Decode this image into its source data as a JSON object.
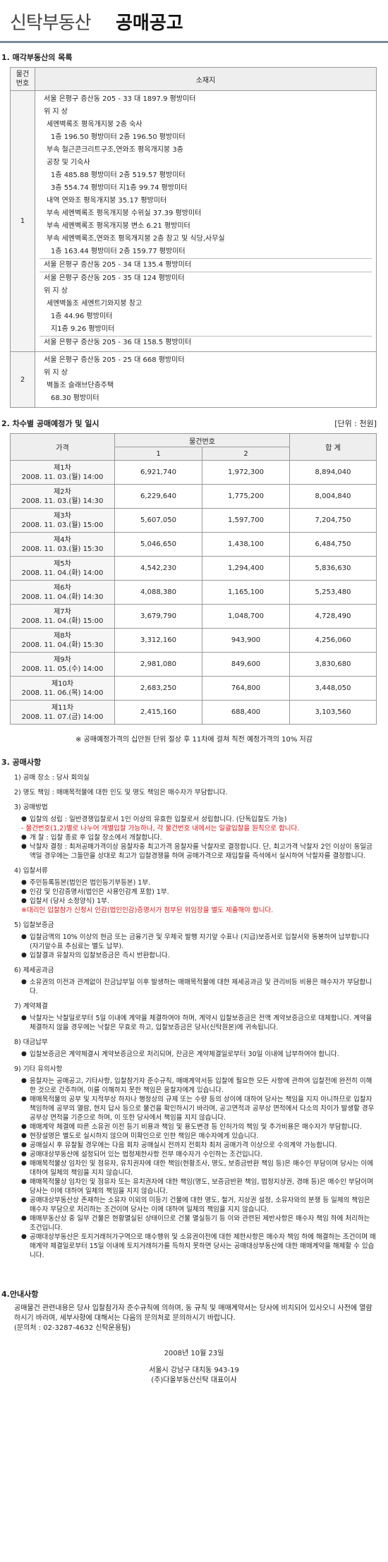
{
  "header": {
    "logo": "신탁부동산",
    "title": "공매공고"
  },
  "s1": {
    "title": "1. 매각부동산의 목록",
    "col1": "물건\n번호",
    "col2": "소재지",
    "item1_no": "1",
    "item1_lines": [
      "서울 은평구 증산동 205 - 33 대 1897.9 평방미터",
      "위 지 상",
      "세멘벽록조 평옥개지붕 2층 숙사",
      "1층 196.50 평방미터 2층 196.50 평방미터",
      "부속 철근콘크리트구조,연와조 평옥개지붕 3층",
      "공장 및 기숙사",
      "1층 485.88 평방미터 2층 519.57 평방미터",
      "3층 554.74 평방미터 지1층 99.74 평방미터",
      "내역 연와조 평옥개지붕 35.17 평방미터",
      "부속 세멘벽록조 평옥개지붕 수위실 37.39 평방미터",
      "부속 세멘벽록조 평옥개지붕 변소 6.21 평방미터",
      "부속 세멘벽록조,연와조 평옥개지붕 2층 창고 및 식당,사무실",
      "1층 163.44 평방미터 2층 159.77 평방미터",
      "서울 은평구 증산동 205 - 34 대 135.4 평방미터",
      "서울 은평구 증산동 205 - 35 대 124 평방미터",
      "위 지 상",
      "세멘벽돌조 세멘트기와지붕 창고",
      "1층 44.96 평방미터",
      "지1층 9.26 평방미터",
      "서울 은평구 증산동 205 - 36 대 158.5 평방미터"
    ],
    "item2_no": "2",
    "item2_lines": [
      "서울 은평구 증산동 205 - 25 대 668 평방미터",
      "위 지 상",
      "벽돌조 슬래브단층주택",
      "68.30 평방미터"
    ]
  },
  "s2": {
    "title": "2. 차수별 공매예정가 및 일시",
    "unit": "[단위 : 천원]",
    "head_price": "가격",
    "head_item": "물건번호",
    "head_1": "1",
    "head_2": "2",
    "head_total": "합 계",
    "rows": [
      {
        "round": "제1차",
        "date": "2008. 11. 03.(월) 14:00",
        "v1": "6,921,740",
        "v2": "1,972,300",
        "total": "8,894,040"
      },
      {
        "round": "제2차",
        "date": "2008. 11. 03.(월) 14:30",
        "v1": "6,229,640",
        "v2": "1,775,200",
        "total": "8,004,840"
      },
      {
        "round": "제3차",
        "date": "2008. 11. 03.(월) 15:00",
        "v1": "5,607,050",
        "v2": "1,597,700",
        "total": "7,204,750"
      },
      {
        "round": "제4차",
        "date": "2008. 11. 03.(월) 15:30",
        "v1": "5,046,650",
        "v2": "1,438,100",
        "total": "6,484,750"
      },
      {
        "round": "제5차",
        "date": "2008. 11. 04.(화) 14:00",
        "v1": "4,542,230",
        "v2": "1,294,400",
        "total": "5,836,630"
      },
      {
        "round": "제6차",
        "date": "2008. 11. 04.(화) 14:30",
        "v1": "4,088,380",
        "v2": "1,165,100",
        "total": "5,253,480"
      },
      {
        "round": "제7차",
        "date": "2008. 11. 04.(화) 15:00",
        "v1": "3,679,790",
        "v2": "1,048,700",
        "total": "4,728,490"
      },
      {
        "round": "제8차",
        "date": "2008. 11. 04.(화) 15:30",
        "v1": "3,312,160",
        "v2": "943,900",
        "total": "4,256,060"
      },
      {
        "round": "제9차",
        "date": "2008. 11. 05.(수) 14:00",
        "v1": "2,981,080",
        "v2": "849,600",
        "total": "3,830,680"
      },
      {
        "round": "제10차",
        "date": "2008. 11. 06.(목) 14:00",
        "v1": "2,683,250",
        "v2": "764,800",
        "total": "3,448,050"
      },
      {
        "round": "제11차",
        "date": "2008. 11. 07.(금) 14:00",
        "v1": "2,415,160",
        "v2": "688,400",
        "total": "3,103,560"
      }
    ],
    "note": "※ 공매예정가격의 십만원 단위 절상 후 11차에 걸쳐 직전 예정가격의 10% 저감"
  },
  "s3": {
    "title": "3. 공매사항",
    "place": "1) 공매 장소 : 당사 회의실",
    "duty": "2) 명도 책임 : 매매목적물에 대한 인도 및 명도 책임은 매수자가 부담합니다.",
    "method_h": "3) 공매방법",
    "method": [
      {
        "t": "입찰의 성립 : 일반경쟁입찰로서 1인 이상의 유효한 입찰로서 성립합니다. (단독입찰도 가능)",
        "red": false,
        "bullet": true
      },
      {
        "t": "- 물건번호(1,2)별로 나누어 개별입찰 가능하나, 각 물건번호 내에서는 일괄입찰을 원칙으로 합니다.",
        "red": true,
        "bullet": false
      },
      {
        "t": "개 찰 : 입찰 종료 후 입찰 장소에서 개찰합니다.",
        "red": false,
        "bullet": true
      },
      {
        "t": "낙찰자 결정 : 최저공매가격이상 응찰자중 최고가격 응찰자를 낙찰자로 결정합니다. 단, 최고가격 낙찰자 2인 이상이 동일금액일 경우에는 그들만을 상대로 최고가 입찰경쟁을 하며 공매가격으로 재입찰을 즉석에서 실시하여 낙찰자를 결정합니다.",
        "red": false,
        "bullet": true
      }
    ],
    "docs_h": "4) 입찰서류",
    "docs": [
      {
        "t": "주민등록등본(법인은 법인등기부등본) 1부.",
        "red": false,
        "bullet": true
      },
      {
        "t": "인감 및 인감증명서(법인은 사용인감계 포함) 1부.",
        "red": false,
        "bullet": true
      },
      {
        "t": "입찰서 (당사 소정양식) 1부.",
        "red": false,
        "bullet": true
      },
      {
        "t": "※대리인 입찰참가 신청시 인감(법인인감)증명서가 첨부된 위임장을 별도 제출해야 합니다.",
        "red": true,
        "bullet": false
      }
    ],
    "deposit_h": "5) 입찰보증금",
    "deposit": [
      {
        "t": "입찰금액의 10% 이상의 현금 또는 금융기관 및 우체국 발행 자기앞 수표나 (지급)보증서로 입찰서와 동봉하여 납부합니다(자기앞수표 추심료는 별도 납부).",
        "red": false,
        "bullet": true
      },
      {
        "t": "입찰결과 유찰자의 입찰보증금은 즉시 반환합니다.",
        "red": false,
        "bullet": true
      }
    ],
    "tax_h": "6) 제세공과금",
    "tax": [
      {
        "t": "소유권의 이전과 관계없이 잔금납부일 이후 발생하는 매매목적물에 대한 제세공과금 및 관리비등 비용은 매수자가 부담합니다.",
        "red": false,
        "bullet": true
      }
    ],
    "contract_h": "7) 계약체결",
    "contract": [
      {
        "t": "낙찰자는 낙찰일로부터 5일 이내에 계약을 체결하여야 하며, 계약시 입찰보증금은 전액 계약보증금으로 대체합니다. 계약을 체결하지 않을 경우에는 낙찰은 무효로 하고, 입찰보증금은 당사(신탁원본)에 귀속됩니다.",
        "red": false,
        "bullet": true
      }
    ],
    "pay_h": "8) 대금납부",
    "pay": [
      {
        "t": "입찰보증금은 계약체결시 계약보증금으로 처리되며, 잔금은 계약체결일로부터 30일 이내에 납부하여야 합니다.",
        "red": false,
        "bullet": true
      }
    ],
    "etc_h": "9) 기타 유의사항",
    "etc": [
      {
        "t": "응찰자는 공매공고, 기타사항, 입찰참가자 준수규칙, 매매계약서등 입찰에 필요한 모든 사항에 관하여 입찰전에 완전히 이해한 것으로 간주하며, 이를 이해하지 못한 책임은 응찰자에게 있습니다.",
        "red": false,
        "bullet": true
      },
      {
        "t": "매매목적물의 공부 및 지적부상 하자나 행정상의 규제 또는 수량 등의 상이에 대하여 당사는 책임을 지지 아니하므로 입찰자 책임하에 공부의 열람, 현지 답사 등으로 물건을 확인하시기 바라며, 공고면적과 공부상 면적에서 다소의 차이가 발생할 경우 공부상 면적을 기준으로 하며, 이 또한 당사에서 책임을 지지 않습니다.",
        "red": false,
        "bullet": true
      },
      {
        "t": "매매계약 체결에 따른 소유권 이전 등기 비용과 책임 및 용도변경 등 인허가의 책임 및 추가비용은 매수자가 부담합니다.",
        "red": false,
        "bullet": true
      },
      {
        "t": "현장설명은 별도로 실시하지 않으며 미확인으로 인한 책임은 매수자에게 있습니다.",
        "red": false,
        "bullet": true
      },
      {
        "t": "공매실시 후 유찰될 경우에는 다음 회차 공매실시 전까지 전회차 최저 공매가격 이상으로 수의계약 가능합니다.",
        "red": false,
        "bullet": true
      },
      {
        "t": "공매대상부동산에 설정되어 있는 법정제한사항 전부 매수자가 수인하는 조건입니다.",
        "red": false,
        "bullet": true
      },
      {
        "t": "매매목적물상 임차인 및 점유자, 유치권자에 대한 책임(현황조사, 명도, 보증금반환 책임 등)은 매수인 부담이며 당사는 이에 대하여 일체의 책임을 지지 않습니다.",
        "red": false,
        "bullet": true
      },
      {
        "t": "매매목적물상 임차인 및 점유자 또는 유치권자에 대한 책임(명도, 보증금반환 책임, 법정지상권, 경매 등)은 매수인 부담이며 당사는 이에 대하여 일체의 책임을 지지 않습니다.",
        "red": false,
        "bullet": true
      },
      {
        "t": "공매대상부동산상 존재하는 소유자 이외의 미등기 건물에 대한 명도, 철거, 지상권 설정, 소유자와의 분쟁 등 일체의 책임은 매수자 부담으로 처리하는 조건이며 당사는 이에 대하여 일체의 책임을 지지 않습니다.",
        "red": false,
        "bullet": true
      },
      {
        "t": "매매부동산상 중 일부 건물은 현황멸실된 상태이므로 건물 멸실등기 등 이와 관련된 제반사항은 매수자 책임 하에 처리하는 조건입니다.",
        "red": false,
        "bullet": true
      },
      {
        "t": "공매대상부동산은 토지거래허가구역으로 매수행위 및 소유권이전에 대한 제한사항은 매수자 책임 하에 해결하는 조건이며 매매계약 체결일로부터 15일 이내에 토지거래허가를 득하지 못하면 당사는 공매대상부동산에 대한 매매계약을 해제할 수 있습니다.",
        "red": false,
        "bullet": true
      }
    ]
  },
  "s4": {
    "title": "4.안내사항",
    "text": "공매물건 관련내용은 당사 입찰참가자 준수규칙에 의하며, 동 규칙 및 매매계약서는 당사에 비치되어 있사오니 사전에 열람하시기 바라며, 세부사항에 대해서는 다음의 문의처로 문의하시기 바랍니다.",
    "contact": "(문의처 : 02-3287-4632 신탁운용팀)",
    "date": "2008년 10월 23일",
    "addr": "서울시 강남구 대치동 943-19",
    "company": "(주)다올부동산신탁 대표이사"
  }
}
